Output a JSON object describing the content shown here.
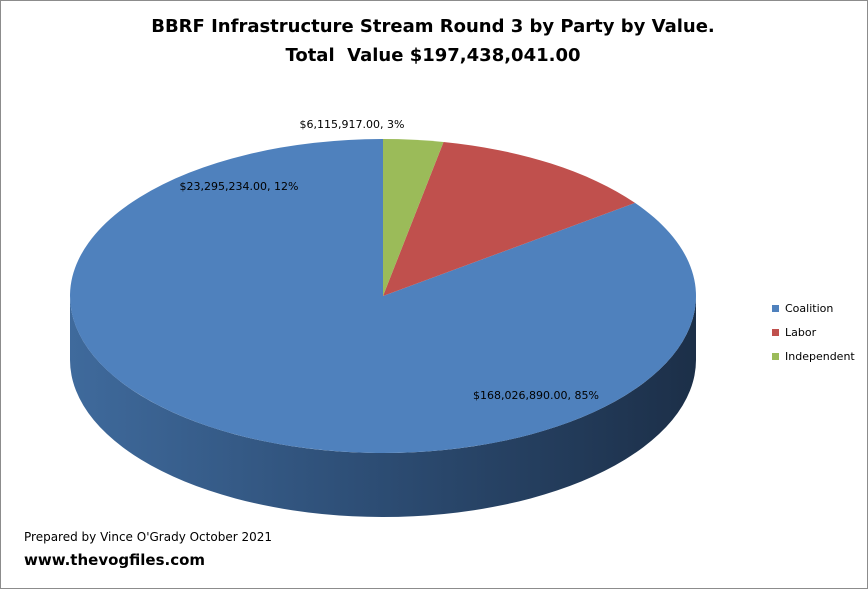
{
  "chart_data": {
    "type": "pie",
    "title": "BBRF Infrastructure Stream Round 3 by Party by Value.",
    "subtitle": "Total  Value $197,438,041.00",
    "categories": [
      "Coalition",
      "Labor",
      "Independent"
    ],
    "values": [
      168026890.0,
      23295234.0,
      6115917.0
    ],
    "percentages": [
      85,
      12,
      3
    ],
    "data_labels": [
      "$168,026,890.00, 85%",
      "$23,295,234.00, 12%",
      "$6,115,917.00, 3%"
    ],
    "colors": [
      "#4f81bd",
      "#c0504d",
      "#9bbb59"
    ],
    "legend": "right",
    "three_d": true
  },
  "footer": {
    "credit": "Prepared by Vince O'Grady October 2021",
    "url": "www.thevogfiles.com"
  }
}
